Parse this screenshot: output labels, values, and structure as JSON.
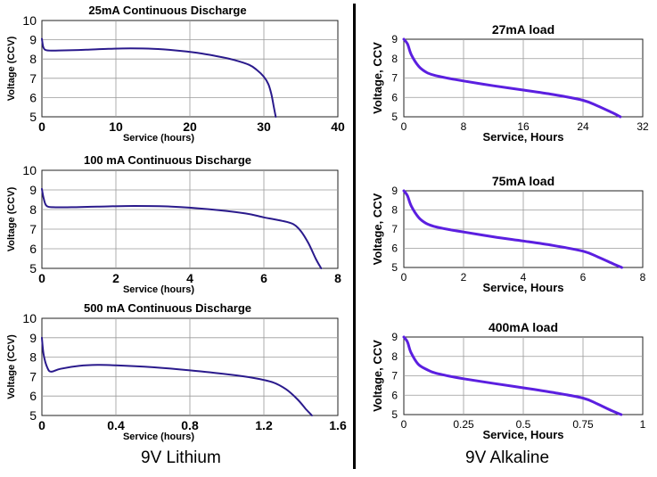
{
  "captions": {
    "left": "9V Lithium",
    "right": "9V Alkaline"
  },
  "colors": {
    "left_curve": "#2a1a8c",
    "right_curve": "#5b1fe0",
    "grid": "#9a9a9a",
    "frame": "#222222"
  },
  "chart_data": [
    {
      "type": "line",
      "title": "25mA Continuous Discharge",
      "xlabel": "Service (hours)",
      "ylabel": "Voltage (CCV)",
      "xlim": [
        0,
        40
      ],
      "ylim": [
        5,
        10
      ],
      "xticks": [
        "0",
        "10",
        "20",
        "30",
        "40"
      ],
      "yticks": [
        "5",
        "6",
        "7",
        "8",
        "9",
        "10"
      ],
      "series": [
        {
          "x": [
            0,
            0.2,
            0.6,
            1.5,
            3,
            6,
            9,
            12,
            15,
            18,
            21,
            24,
            26,
            28,
            29,
            30,
            30.6,
            31,
            31.3,
            31.6
          ],
          "y": [
            9.05,
            8.6,
            8.46,
            8.44,
            8.45,
            8.48,
            8.53,
            8.55,
            8.53,
            8.45,
            8.32,
            8.12,
            7.95,
            7.7,
            7.45,
            7.08,
            6.7,
            6.2,
            5.6,
            5.0
          ]
        }
      ]
    },
    {
      "type": "line",
      "title": "100 mA Continuous Discharge",
      "xlabel": "Service (hours)",
      "ylabel": "Voltage (CCV)",
      "xlim": [
        0,
        8
      ],
      "ylim": [
        5,
        10
      ],
      "xticks": [
        "0",
        "2",
        "4",
        "6",
        "8"
      ],
      "yticks": [
        "5",
        "6",
        "7",
        "8",
        "9",
        "10"
      ],
      "series": [
        {
          "x": [
            0,
            0.05,
            0.12,
            0.3,
            0.8,
            1.5,
            2.5,
            3.5,
            4.5,
            5.5,
            6,
            6.5,
            6.8,
            7,
            7.2,
            7.4,
            7.55
          ],
          "y": [
            9.05,
            8.55,
            8.2,
            8.12,
            8.12,
            8.15,
            8.18,
            8.15,
            8.02,
            7.8,
            7.6,
            7.42,
            7.25,
            6.9,
            6.3,
            5.5,
            5.0
          ]
        }
      ]
    },
    {
      "type": "line",
      "title": "500 mA Continuous Discharge",
      "xlabel": "Service (hours)",
      "ylabel": "Voltage (CCV)",
      "xlim": [
        0,
        1.6
      ],
      "ylim": [
        5,
        10
      ],
      "xticks": [
        "0",
        "0.4",
        "0.8",
        "1.2",
        "1.6"
      ],
      "yticks": [
        "5",
        "6",
        "7",
        "8",
        "9",
        "10"
      ],
      "series": [
        {
          "x": [
            0,
            0.01,
            0.03,
            0.05,
            0.1,
            0.2,
            0.3,
            0.4,
            0.6,
            0.8,
            1,
            1.15,
            1.25,
            1.32,
            1.38,
            1.43,
            1.46
          ],
          "y": [
            9.0,
            8.1,
            7.45,
            7.25,
            7.4,
            7.55,
            7.6,
            7.58,
            7.48,
            7.32,
            7.12,
            6.92,
            6.7,
            6.35,
            5.85,
            5.3,
            5.0
          ]
        }
      ]
    },
    {
      "type": "line",
      "title": "27mA load",
      "xlabel": "Service, Hours",
      "ylabel": "Voltage, CCV",
      "xlim": [
        0,
        32
      ],
      "ylim": [
        5,
        9
      ],
      "xticks": [
        "0",
        "8",
        "16",
        "24",
        "32"
      ],
      "yticks": [
        "5",
        "6",
        "7",
        "8",
        "9"
      ],
      "series": [
        {
          "x": [
            0,
            0.5,
            1,
            2,
            3,
            4,
            6,
            8,
            12,
            16,
            20,
            24,
            26,
            28,
            29
          ],
          "y": [
            9.0,
            8.75,
            8.2,
            7.6,
            7.3,
            7.15,
            6.98,
            6.85,
            6.6,
            6.38,
            6.15,
            5.85,
            5.55,
            5.2,
            5.0
          ]
        }
      ]
    },
    {
      "type": "line",
      "title": "75mA load",
      "xlabel": "Service, Hours",
      "ylabel": "Voltage, CCV",
      "xlim": [
        0,
        8
      ],
      "ylim": [
        5,
        9
      ],
      "xticks": [
        "0",
        "2",
        "4",
        "6",
        "8"
      ],
      "yticks": [
        "5",
        "6",
        "7",
        "8",
        "9"
      ],
      "series": [
        {
          "x": [
            0,
            0.12,
            0.25,
            0.5,
            0.75,
            1,
            1.5,
            2,
            3,
            4,
            5,
            6,
            6.5,
            7,
            7.3
          ],
          "y": [
            9.0,
            8.75,
            8.2,
            7.6,
            7.3,
            7.15,
            6.98,
            6.85,
            6.6,
            6.38,
            6.15,
            5.85,
            5.55,
            5.2,
            5.0
          ]
        }
      ]
    },
    {
      "type": "line",
      "title": "400mA load",
      "xlabel": "Service, Hours",
      "ylabel": "Voltage, CCV",
      "xlim": [
        0,
        1
      ],
      "ylim": [
        5,
        9
      ],
      "xticks": [
        "0",
        "0.25",
        "0.5",
        "0.75",
        "1"
      ],
      "yticks": [
        "5",
        "6",
        "7",
        "8",
        "9"
      ],
      "series": [
        {
          "x": [
            0,
            0.015,
            0.03,
            0.06,
            0.1,
            0.13,
            0.19,
            0.25,
            0.38,
            0.5,
            0.62,
            0.75,
            0.81,
            0.87,
            0.91
          ],
          "y": [
            9.0,
            8.75,
            8.2,
            7.6,
            7.3,
            7.15,
            6.98,
            6.85,
            6.6,
            6.38,
            6.15,
            5.85,
            5.55,
            5.2,
            5.0
          ]
        }
      ]
    }
  ]
}
